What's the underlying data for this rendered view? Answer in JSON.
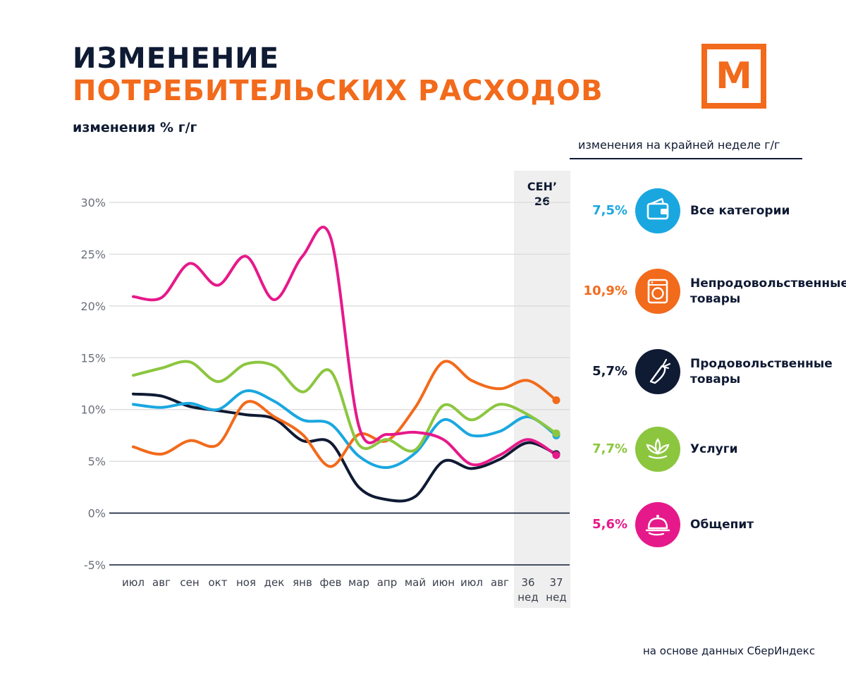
{
  "header": {
    "title_line1": "ИЗМЕНЕНИЕ",
    "title_line2": "ПОТРЕБИТЕЛЬСКИХ РАСХОДОВ",
    "subtitle": "изменения % г/г"
  },
  "logo": {
    "letter": "М",
    "color": "#f26a1b"
  },
  "legend": {
    "heading": "изменения на крайней неделе г/г",
    "items": [
      {
        "value": "7,5%",
        "label": "Все категории",
        "color": "#1aa7e0",
        "icon": "wallet-icon"
      },
      {
        "value": "10,9%",
        "label": "Непродовольственные товары",
        "color": "#f26a1b",
        "icon": "washing-machine-icon"
      },
      {
        "value": "5,7%",
        "label": "Продовольственные товары",
        "color": "#0f1a33",
        "icon": "carrot-icon"
      },
      {
        "value": "7,7%",
        "label": "Услуги",
        "color": "#8cc63f",
        "icon": "lotus-icon"
      },
      {
        "value": "5,6%",
        "label": "Общепит",
        "color": "#e6198a",
        "icon": "cloche-icon"
      }
    ]
  },
  "source": "на основе данных СберИндекс",
  "chart_data": {
    "type": "line",
    "categories": [
      "июл",
      "авг",
      "сен",
      "окт",
      "ноя",
      "дек",
      "янв",
      "фев",
      "мар",
      "апр",
      "май",
      "июн",
      "июл",
      "авг",
      "36 нед",
      "37 нед"
    ],
    "category_lines": [
      [
        "июл"
      ],
      [
        "авг"
      ],
      [
        "сен"
      ],
      [
        "окт"
      ],
      [
        "ноя"
      ],
      [
        "дек"
      ],
      [
        "янв"
      ],
      [
        "фев"
      ],
      [
        "мар"
      ],
      [
        "апр"
      ],
      [
        "май"
      ],
      [
        "июн"
      ],
      [
        "июл"
      ],
      [
        "авг"
      ],
      [
        "36",
        "нед"
      ],
      [
        "37",
        "нед"
      ]
    ],
    "y_ticks": [
      -5,
      0,
      5,
      10,
      15,
      20,
      25,
      30
    ],
    "y_tick_labels": [
      "-5%",
      "0%",
      "5%",
      "10%",
      "15%",
      "20%",
      "25%",
      "30%"
    ],
    "ylim": [
      -5,
      30
    ],
    "highlight": {
      "from_category": "36 нед",
      "to_category": "37 нед",
      "label_line1": "СЕН’",
      "label_line2": "26",
      "color": "#efefef"
    },
    "grid": true,
    "series": [
      {
        "name": "Все категории",
        "color": "#1aa7e0",
        "values": [
          10.5,
          10.2,
          10.6,
          10.0,
          11.8,
          10.8,
          9.0,
          8.6,
          5.5,
          4.4,
          5.8,
          9.0,
          7.5,
          7.9,
          9.3,
          7.5
        ]
      },
      {
        "name": "Непродовольственные товары",
        "color": "#f26a1b",
        "values": [
          6.4,
          5.7,
          7.0,
          6.6,
          10.7,
          9.3,
          7.6,
          4.5,
          7.6,
          7.0,
          10.2,
          14.6,
          12.8,
          12.0,
          12.8,
          10.9
        ]
      },
      {
        "name": "Продовольственные товары",
        "color": "#0f1a33",
        "values": [
          11.5,
          11.3,
          10.3,
          9.9,
          9.5,
          9.1,
          7.0,
          6.8,
          2.5,
          1.3,
          1.6,
          5.0,
          4.3,
          5.2,
          6.8,
          5.7
        ]
      },
      {
        "name": "Услуги",
        "color": "#8cc63f",
        "values": [
          13.3,
          14.0,
          14.6,
          12.7,
          14.4,
          14.2,
          11.7,
          13.7,
          6.6,
          7.1,
          6.1,
          10.4,
          9.0,
          10.5,
          9.5,
          7.7
        ]
      },
      {
        "name": "Общепит",
        "color": "#e6198a",
        "values": [
          20.9,
          20.8,
          24.1,
          22.0,
          24.8,
          20.6,
          24.8,
          26.6,
          8.4,
          7.6,
          7.8,
          7.1,
          4.7,
          5.6,
          7.1,
          5.6
        ]
      }
    ]
  }
}
